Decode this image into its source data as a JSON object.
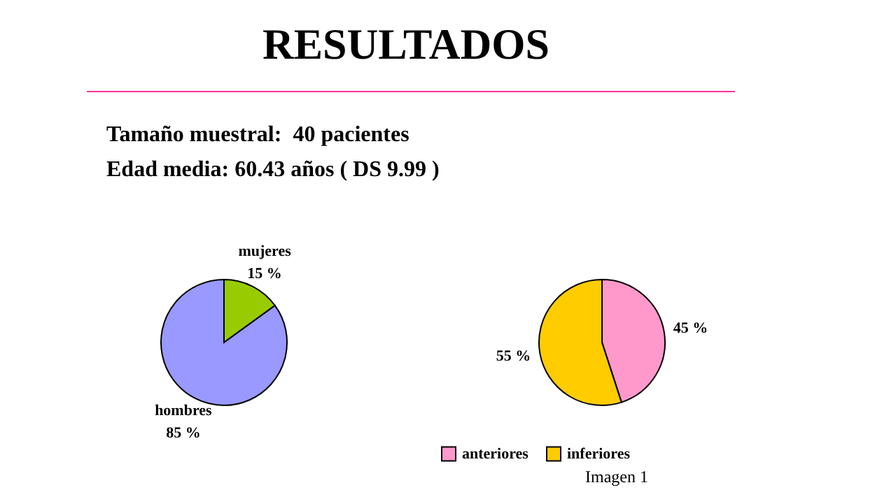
{
  "chart_data": [
    {
      "type": "pie",
      "title": "RESULTADOS",
      "subtitle": "Tamaño muestral:  40 pacientes\nEdad media: 60.43 años ( DS 9.99 )",
      "categories": [
        "mujeres",
        "hombres"
      ],
      "values": [
        15,
        85
      ],
      "value_labels": [
        "15 %",
        "85 %"
      ],
      "colors": [
        "#99cc00",
        "#9999ff"
      ],
      "legend": false
    },
    {
      "type": "pie",
      "categories": [
        "anteriores",
        "inferiores"
      ],
      "values": [
        45,
        55
      ],
      "value_labels": [
        "45 %",
        "55 %"
      ],
      "colors": [
        "#ff99cc",
        "#ffcc00"
      ],
      "legend": "bottom",
      "annotations": [
        "Imagen 1"
      ]
    }
  ]
}
